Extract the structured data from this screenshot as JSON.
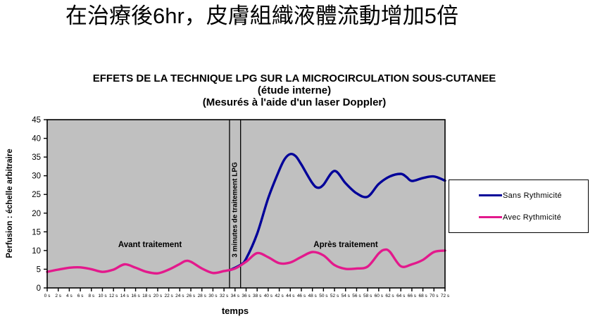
{
  "heading": "在治療後6hr，皮膚組織液體流動增加5倍",
  "chart_data": {
    "type": "line",
    "title": "EFFETS DE LA TECHNIQUE LPG SUR LA MICROCIRCULATION SOUS-CUTANEE",
    "subtitle_1": "(étude interne)",
    "subtitle_2": "(Mesurés à l'aide d'un laser Doppler)",
    "xlabel": "temps",
    "ylabel": "Perfusion : échelle arbitraire",
    "xlim": [
      0,
      72
    ],
    "ylim": [
      0,
      45
    ],
    "y_ticks": [
      0,
      5,
      10,
      15,
      20,
      25,
      30,
      35,
      40,
      45
    ],
    "x_tick_labels": [
      "0 s",
      "2 s",
      "4 s",
      "6 s",
      "8 s",
      "10 s",
      "12 s",
      "14 s",
      "16 s",
      "18 s",
      "20 s",
      "22 s",
      "24 s",
      "26 s",
      "28 s",
      "30 s",
      "32 s",
      "34 s",
      "36 s",
      "38 s",
      "40 s",
      "42 s",
      "44 s",
      "46 s",
      "48 s",
      "50 s",
      "52 s",
      "54 s",
      "56 s",
      "58 s",
      "60 s",
      "62 s",
      "64 s",
      "66 s",
      "68 s",
      "70 s",
      "72 s"
    ],
    "grid": false,
    "plot_background": "#c0c0c0",
    "axis_color": "#000000",
    "legend_position": "right-outside",
    "treatment_window": {
      "times": [
        33,
        35
      ],
      "label": "3 minutes de traitement LPG"
    },
    "annotations": [
      {
        "text": "Avant traitement"
      },
      {
        "text": "Après traitement"
      }
    ],
    "series": [
      {
        "name": "Sans  Rythmicité",
        "color": "#000099",
        "points": [
          [
            33,
            4.7
          ],
          [
            35,
            6.2
          ],
          [
            36,
            7.8
          ],
          [
            38,
            14.5
          ],
          [
            40,
            24
          ],
          [
            42,
            31.5
          ],
          [
            43,
            34.5
          ],
          [
            44,
            35.8
          ],
          [
            45,
            35.2
          ],
          [
            46,
            33
          ],
          [
            48,
            28
          ],
          [
            49,
            26.8
          ],
          [
            50,
            27.6
          ],
          [
            52,
            31.3
          ],
          [
            54,
            28
          ],
          [
            56,
            25.3
          ],
          [
            58,
            24.4
          ],
          [
            60,
            27.8
          ],
          [
            62,
            29.8
          ],
          [
            64,
            30.5
          ],
          [
            65,
            29.7
          ],
          [
            66,
            28.6
          ],
          [
            68,
            29.4
          ],
          [
            70,
            29.8
          ],
          [
            72,
            28.7
          ]
        ]
      },
      {
        "name": "Avec  Rythmicité",
        "color": "#e3198c",
        "points": [
          [
            0,
            4.3
          ],
          [
            2,
            4.9
          ],
          [
            4,
            5.4
          ],
          [
            6,
            5.5
          ],
          [
            8,
            5.0
          ],
          [
            10,
            4.3
          ],
          [
            12,
            4.9
          ],
          [
            14,
            6.3
          ],
          [
            16,
            5.4
          ],
          [
            18,
            4.3
          ],
          [
            20,
            3.9
          ],
          [
            22,
            4.9
          ],
          [
            24,
            6.4
          ],
          [
            25,
            7.2
          ],
          [
            26,
            7.0
          ],
          [
            28,
            5.2
          ],
          [
            30,
            4.0
          ],
          [
            32,
            4.5
          ],
          [
            34,
            5.2
          ],
          [
            36,
            7.0
          ],
          [
            38,
            9.3
          ],
          [
            40,
            8.2
          ],
          [
            42,
            6.6
          ],
          [
            44,
            6.8
          ],
          [
            46,
            8.3
          ],
          [
            48,
            9.6
          ],
          [
            50,
            8.7
          ],
          [
            52,
            6.1
          ],
          [
            54,
            5.1
          ],
          [
            56,
            5.2
          ],
          [
            58,
            5.7
          ],
          [
            60,
            9.2
          ],
          [
            61,
            10.2
          ],
          [
            62,
            9.7
          ],
          [
            64,
            5.8
          ],
          [
            66,
            6.3
          ],
          [
            68,
            7.5
          ],
          [
            70,
            9.6
          ],
          [
            72,
            10.0
          ]
        ]
      }
    ]
  }
}
